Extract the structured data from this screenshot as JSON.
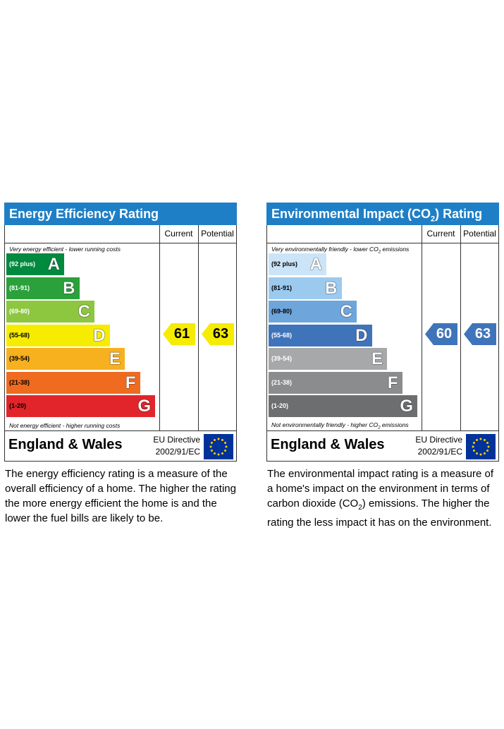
{
  "chart_data": [
    {
      "type": "bar",
      "title": "Energy Efficiency Rating",
      "columns": [
        "Current",
        "Potential"
      ],
      "top_note": "Very energy efficient - lower running costs",
      "bottom_note": "Not energy efficient - higher running costs",
      "bands": [
        {
          "letter": "A",
          "range": "(92 plus)",
          "color": "#008a3f"
        },
        {
          "letter": "B",
          "range": "(81-91)",
          "color": "#2aa13a"
        },
        {
          "letter": "C",
          "range": "(69-80)",
          "color": "#8dc63f"
        },
        {
          "letter": "D",
          "range": "(55-68)",
          "color": "#f5ec00"
        },
        {
          "letter": "E",
          "range": "(39-54)",
          "color": "#f7b01e"
        },
        {
          "letter": "F",
          "range": "(21-38)",
          "color": "#ef6b1f"
        },
        {
          "letter": "G",
          "range": "(1-20)",
          "color": "#e1252b"
        }
      ],
      "current": {
        "value": "61",
        "band": "D",
        "color": "#f5ec00"
      },
      "potential": {
        "value": "63",
        "band": "D",
        "color": "#f5ec00"
      },
      "footer": "England & Wales",
      "directive_line1": "EU Directive",
      "directive_line2": "2002/91/EC"
    },
    {
      "type": "bar",
      "title_prefix": "Environmental Impact (CO",
      "title_sub": "2",
      "title_suffix": ") Rating",
      "columns": [
        "Current",
        "Potential"
      ],
      "top_note_prefix": "Very environmentally friendly - lower CO",
      "top_note_sub": "2",
      "top_note_suffix": " emissions",
      "bottom_note_prefix": "Not environmentally friendly - higher CO",
      "bottom_note_sub": "2",
      "bottom_note_suffix": " emissions",
      "bands": [
        {
          "letter": "A",
          "range": "(92 plus)",
          "color": "#cce4f7"
        },
        {
          "letter": "B",
          "range": "(81-91)",
          "color": "#9ccaef"
        },
        {
          "letter": "C",
          "range": "(69-80)",
          "color": "#6ea6dc"
        },
        {
          "letter": "D",
          "range": "(55-68)",
          "color": "#3f74bb"
        },
        {
          "letter": "E",
          "range": "(39-54)",
          "color": "#a7a8aa"
        },
        {
          "letter": "F",
          "range": "(21-38)",
          "color": "#8b8c8e"
        },
        {
          "letter": "G",
          "range": "(1-20)",
          "color": "#6d6e70"
        }
      ],
      "current": {
        "value": "60",
        "band": "D",
        "color": "#3f74bb"
      },
      "potential": {
        "value": "63",
        "band": "D",
        "color": "#3f74bb"
      },
      "footer": "England & Wales",
      "directive_line1": "EU Directive",
      "directive_line2": "2002/91/EC"
    }
  ],
  "descriptions": {
    "eer": "The energy efficiency rating is a measure of the overall efficiency of a home. The higher the rating the more energy efficient the home is and the lower the fuel bills are likely to be.",
    "ei_prefix": "The environmental impact rating is a measure of a home's impact on the environment in terms of carbon dioxide (CO",
    "ei_sub": "2",
    "ei_suffix": ") emissions. The higher the rating the less impact it has on the environment."
  },
  "flag": {
    "background": "#003399",
    "stars": "#ffcc00"
  }
}
